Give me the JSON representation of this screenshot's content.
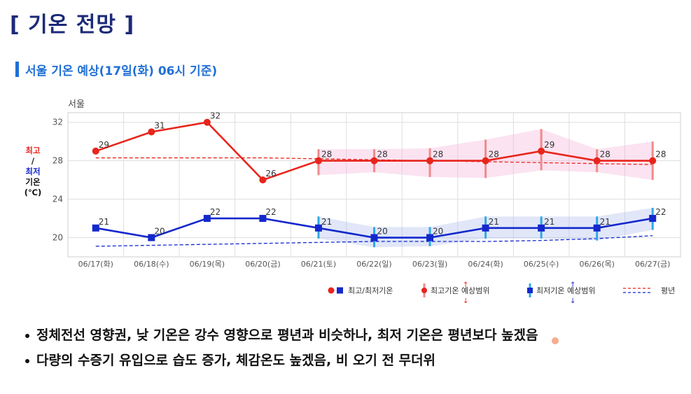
{
  "page": {
    "title": "[ 기온 전망 ]",
    "subtitle": "서울 기온 예상(17일(화) 06시 기준)"
  },
  "chart_data": {
    "type": "line",
    "title": "서울",
    "ylabel_lines": [
      "최고",
      "/",
      "최저",
      "기온",
      "(℃)"
    ],
    "ylim": [
      18,
      33
    ],
    "yticks": [
      20,
      24,
      28,
      32
    ],
    "grid": true,
    "categories": [
      "06/17(화)",
      "06/18(수)",
      "06/19(목)",
      "06/20(금)",
      "06/21(토)",
      "06/22(일)",
      "06/23(월)",
      "06/24(화)",
      "06/25(수)",
      "06/26(목)",
      "06/27(금)"
    ],
    "series": [
      {
        "name": "최고/최저기온",
        "role": "max",
        "color": "#e8251c",
        "values": [
          29,
          31,
          32,
          26,
          28,
          28,
          28,
          28,
          29,
          28,
          28
        ],
        "range_low": [
          null,
          null,
          null,
          null,
          26.5,
          26.8,
          26.3,
          26.2,
          27.0,
          26.8,
          26.0
        ],
        "range_high": [
          null,
          null,
          null,
          null,
          29.2,
          29.2,
          29.3,
          30.2,
          31.3,
          29.2,
          30.0
        ]
      },
      {
        "name": "최고/최저기온",
        "role": "min",
        "color": "#1428cc",
        "values": [
          21,
          20,
          22,
          22,
          21,
          20,
          20,
          21,
          21,
          21,
          22
        ],
        "range_low": [
          null,
          null,
          null,
          null,
          19.9,
          19.0,
          19.1,
          19.9,
          19.9,
          19.7,
          20.8
        ],
        "range_high": [
          null,
          null,
          null,
          null,
          22.2,
          21.1,
          21.1,
          22.2,
          22.2,
          22.2,
          23.1
        ]
      },
      {
        "name": "평년",
        "role": "normal-max",
        "color": "#e8251c",
        "values": [
          28.3,
          28.3,
          28.3,
          28.3,
          28.2,
          28.1,
          28.0,
          27.9,
          27.8,
          27.7,
          27.6
        ]
      },
      {
        "name": "평년",
        "role": "normal-min",
        "color": "#1428cc",
        "values": [
          19.1,
          19.2,
          19.3,
          19.4,
          19.5,
          19.6,
          19.6,
          19.6,
          19.7,
          19.9,
          20.2
        ]
      }
    ],
    "legend": [
      "최고/최저기온",
      "최고기온 예상범위",
      "최저기온 예상범위",
      "평년"
    ],
    "legend_position": "bottom-right"
  },
  "bullets": [
    "정체전선 영향권, 낮 기온은 강수 영향으로 평년과 비슷하나, 최저 기온은 평년보다 높겠음",
    "다량의 수증기 유입으로 습도 증가, 체감온도 높겠음, 비 오기 전 무더위"
  ]
}
